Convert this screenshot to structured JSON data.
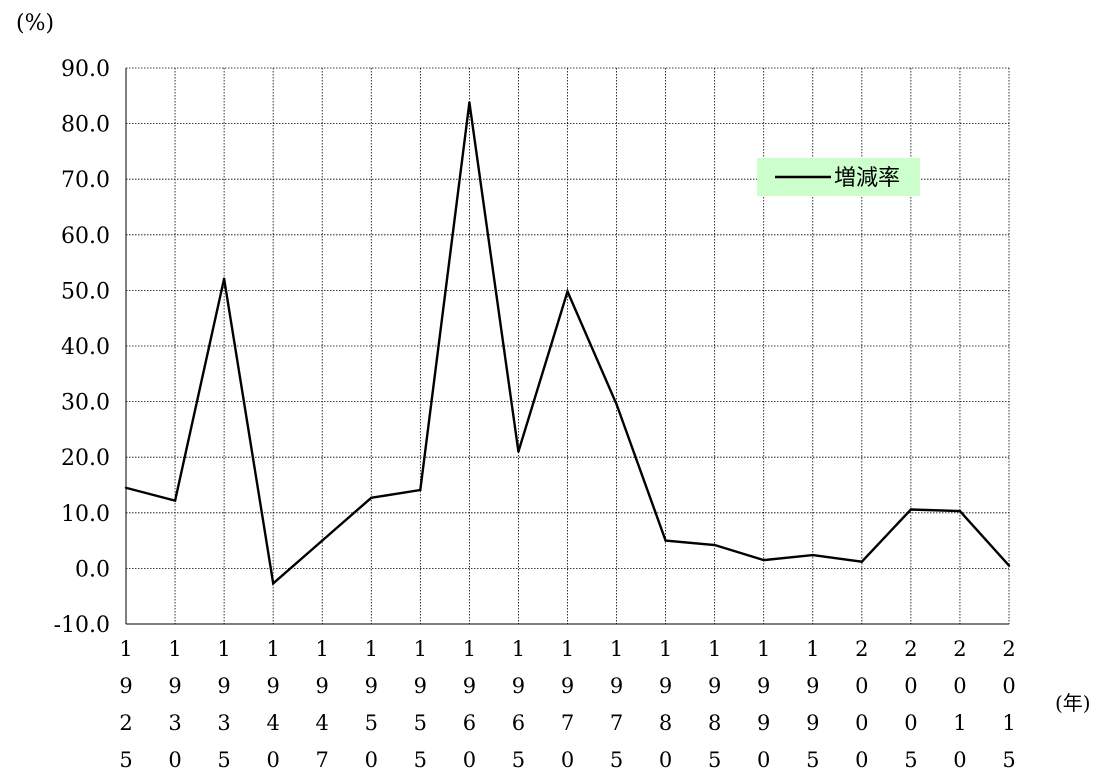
{
  "chart_data": {
    "type": "line",
    "y_unit_label": "(%)",
    "x_unit_label": "(年)",
    "categories": [
      "1925",
      "1930",
      "1935",
      "1940",
      "1947",
      "1950",
      "1955",
      "1960",
      "1965",
      "1970",
      "1975",
      "1980",
      "1985",
      "1990",
      "1995",
      "2000",
      "2005",
      "2010",
      "2015"
    ],
    "series": [
      {
        "name": "増減率",
        "values": [
          14.5,
          12.2,
          52.1,
          -2.7,
          5.0,
          12.7,
          14.1,
          83.8,
          21.0,
          49.8,
          29.5,
          5.0,
          4.2,
          1.5,
          2.4,
          1.2,
          10.6,
          10.3,
          0.5
        ]
      }
    ],
    "yticks": [
      "90.0",
      "80.0",
      "70.0",
      "60.0",
      "50.0",
      "40.0",
      "30.0",
      "20.0",
      "10.0",
      "0.0",
      "-10.0"
    ],
    "ylim": [
      -10,
      90
    ],
    "grid": true,
    "legend_position": "top-right",
    "legend_background": "#ccffcc",
    "line_color": "#000000"
  }
}
